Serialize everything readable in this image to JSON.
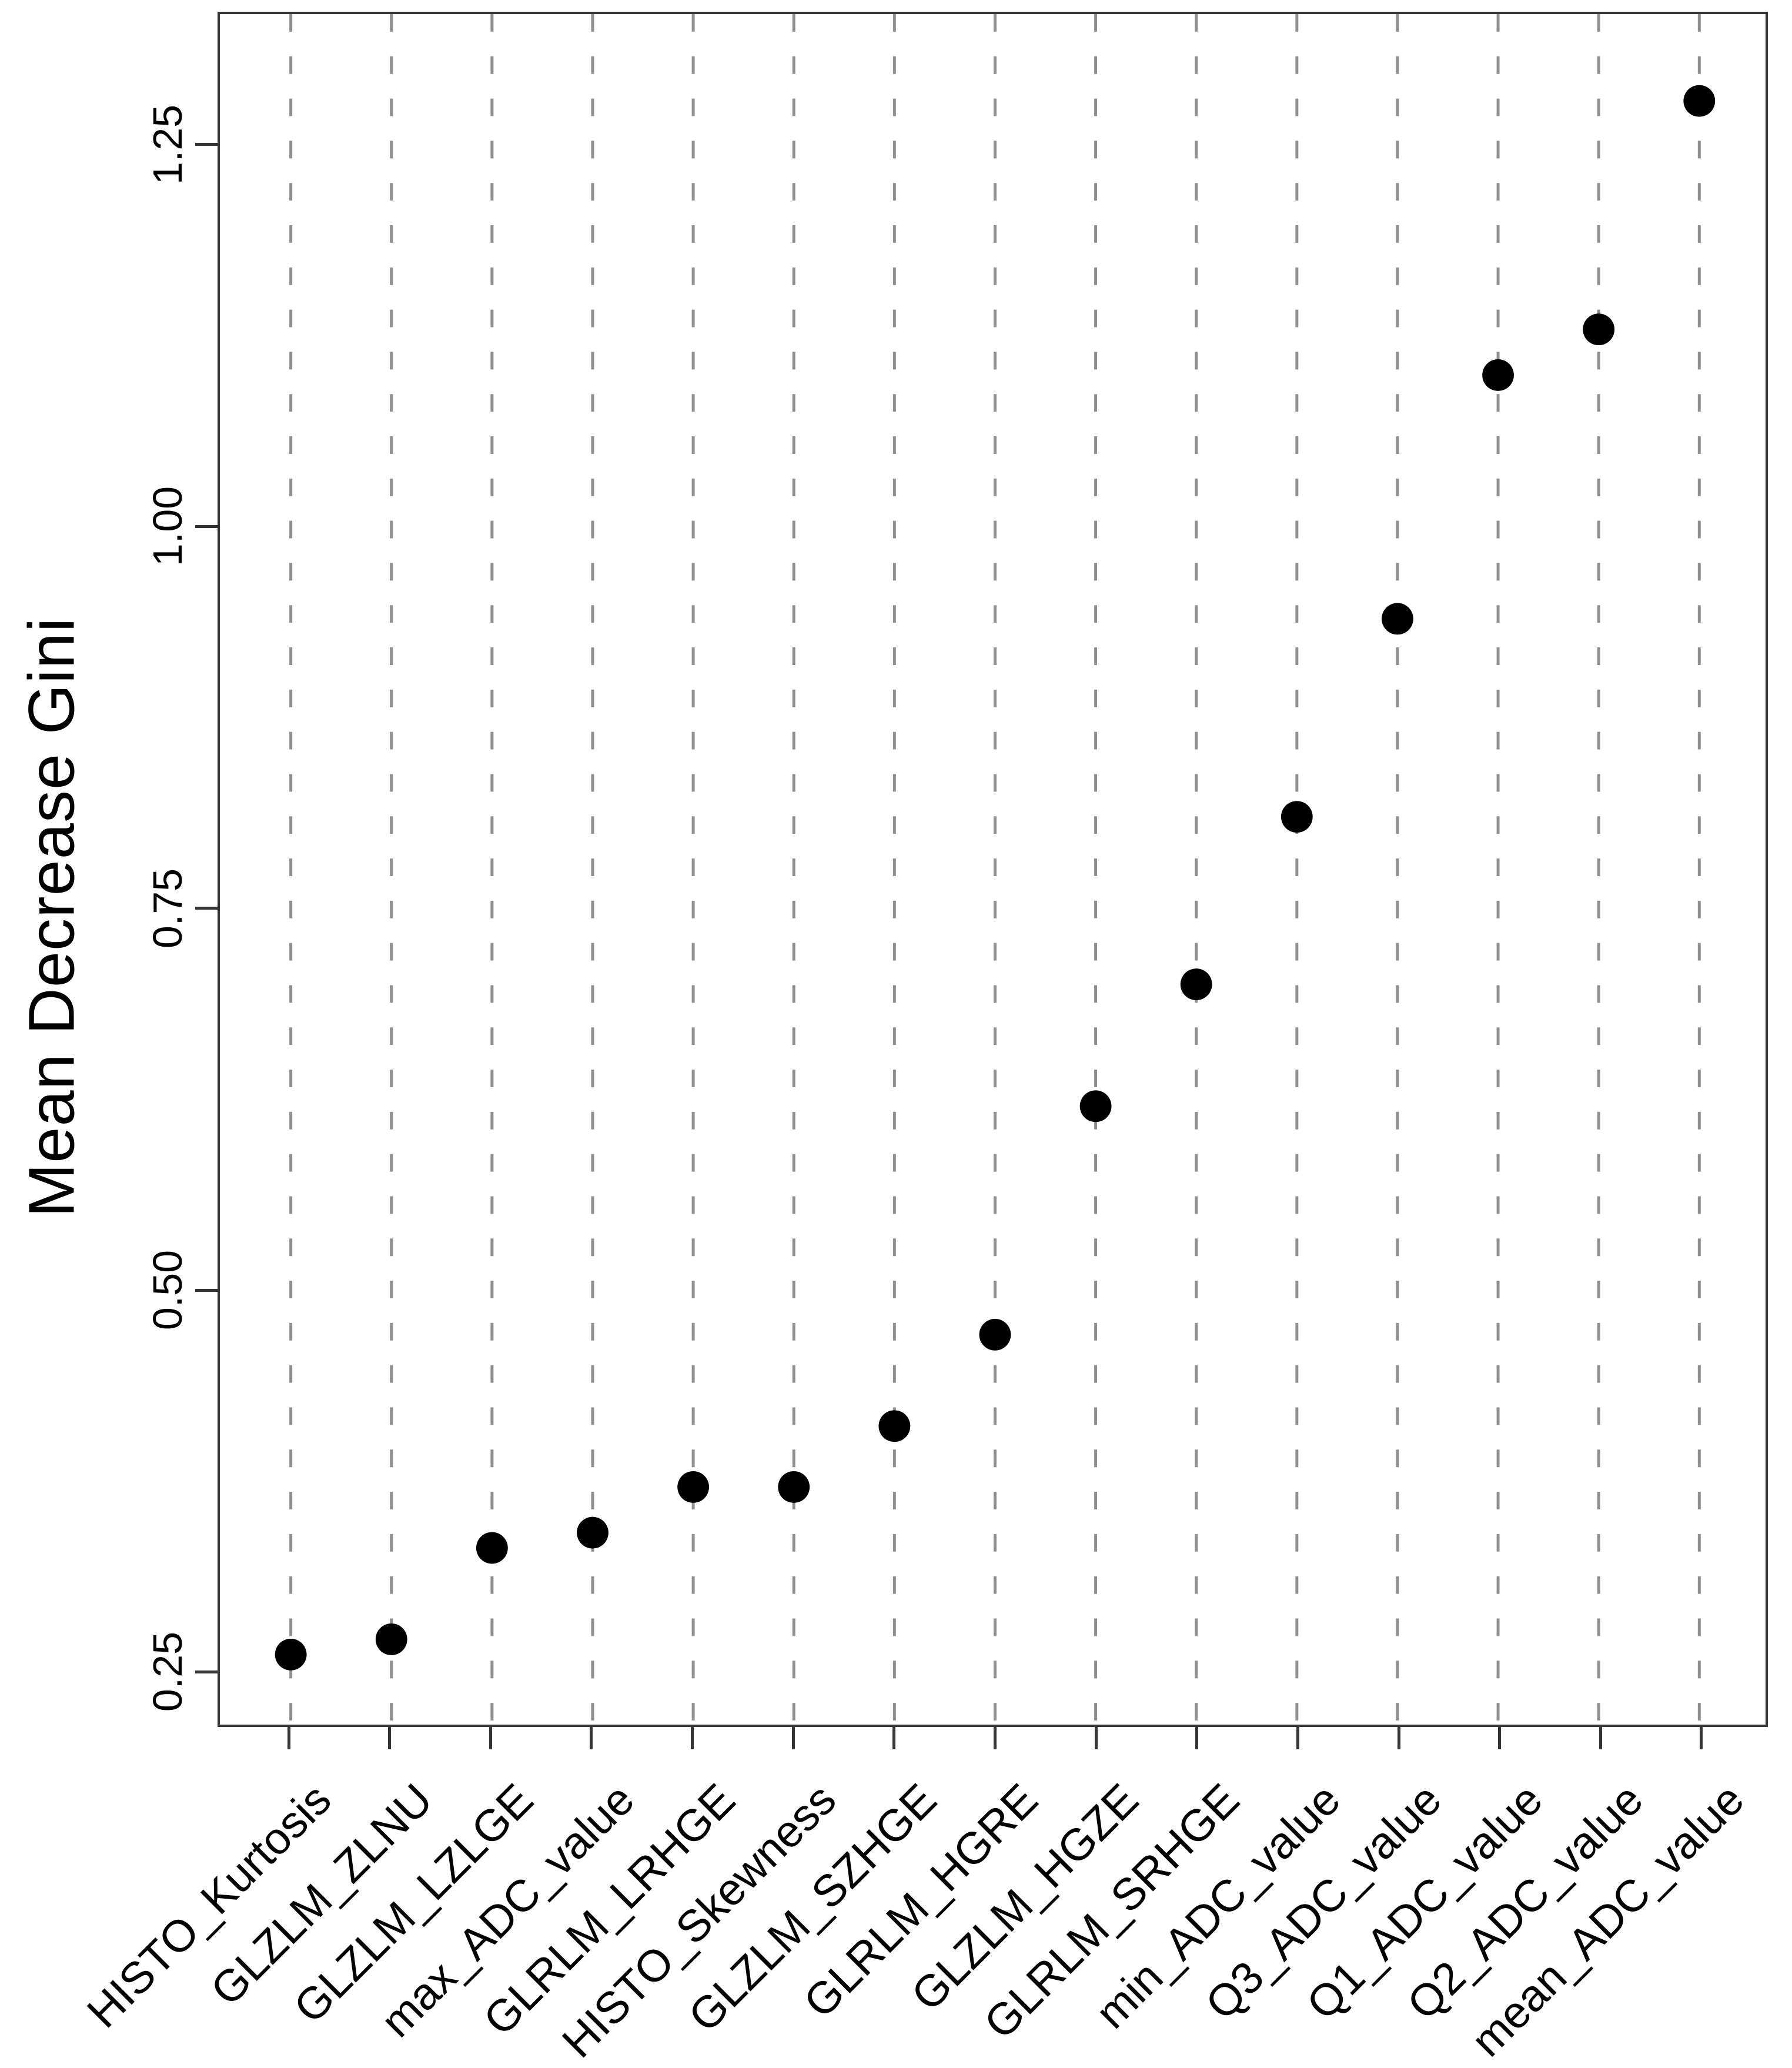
{
  "chart_data": {
    "type": "scatter",
    "title": "",
    "xlabel": "",
    "ylabel": "Mean Decrease Gini",
    "categories": [
      "HISTO_Kurtosis",
      "GLZLM_ZLNU",
      "GLZLM_LZLGE",
      "max_ADC_value",
      "GLRLM_LRHGE",
      "HISTO_Skewness",
      "GLZLM_SZHGE",
      "GLRLM_HGRE",
      "GLZLM_HGZE",
      "GLRLM_SRHGE",
      "min_ADC_value",
      "Q3_ADC_value",
      "Q1_ADC_value",
      "Q2_ADC_value",
      "mean_ADC_value"
    ],
    "values": [
      0.26,
      0.27,
      0.33,
      0.34,
      0.37,
      0.37,
      0.41,
      0.47,
      0.62,
      0.7,
      0.81,
      0.94,
      1.1,
      1.13,
      1.28
    ],
    "yticks": [
      0.25,
      0.5,
      0.75,
      1.0,
      1.25
    ],
    "ytick_labels": [
      "0.25",
      "0.50",
      "0.75",
      "1.00",
      "1.25"
    ],
    "ylim": [
      0.214,
      1.337
    ],
    "grid": "dashed-vertical",
    "legend": "none",
    "point_color": "#000000",
    "gridline_color": "#8f8f8f",
    "axis_color": "#353535",
    "text_color": "#000000"
  }
}
